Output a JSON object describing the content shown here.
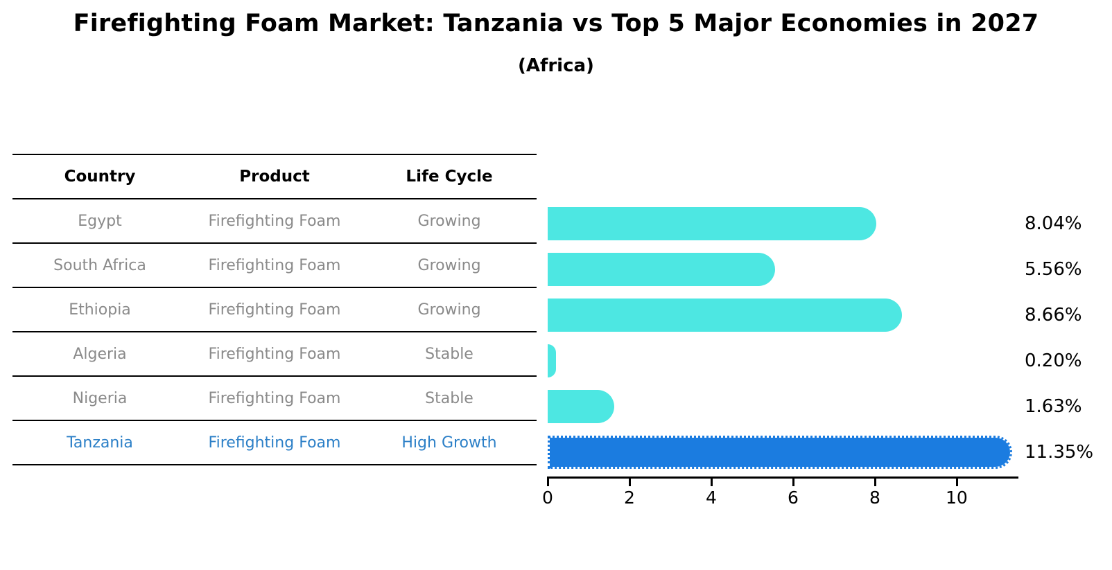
{
  "chart": {
    "title": "Firefighting Foam Market: Tanzania vs Top 5 Major Economies in 2027",
    "subtitle": "(Africa)"
  },
  "table": {
    "headers": [
      "Country",
      "Product",
      "Life Cycle"
    ],
    "rows": [
      {
        "country": "Egypt",
        "product": "Firefighting Foam",
        "life_cycle": "Growing",
        "highlight": false
      },
      {
        "country": "South Africa",
        "product": "Firefighting Foam",
        "life_cycle": "Growing",
        "highlight": false
      },
      {
        "country": "Ethiopia",
        "product": "Firefighting Foam",
        "life_cycle": "Growing",
        "highlight": false
      },
      {
        "country": "Algeria",
        "product": "Firefighting Foam",
        "life_cycle": "Stable",
        "highlight": false
      },
      {
        "country": "Nigeria",
        "product": "Firefighting Foam",
        "life_cycle": "Stable",
        "highlight": false
      },
      {
        "country": "Tanzania",
        "product": "Firefighting Foam",
        "life_cycle": "High Growth",
        "highlight": true
      }
    ]
  },
  "chart_data": {
    "type": "bar",
    "orientation": "horizontal",
    "title": "Firefighting Foam Market: Tanzania vs Top 5 Major Economies in 2027 (Africa)",
    "categories": [
      "Egypt",
      "South Africa",
      "Ethiopia",
      "Algeria",
      "Nigeria",
      "Tanzania"
    ],
    "values": [
      8.04,
      5.56,
      8.66,
      0.2,
      1.63,
      11.35
    ],
    "value_labels": [
      "8.04%",
      "5.56%",
      "8.66%",
      "0.20%",
      "1.63%",
      "11.35%"
    ],
    "highlight_index": 5,
    "xlabel": "",
    "ylabel": "",
    "xlim": [
      0,
      11.46
    ],
    "xticks": [
      0,
      2,
      4,
      6,
      8,
      10
    ],
    "grid": false,
    "legend": "none"
  },
  "colors": {
    "bar_default": "#4DE7E2",
    "bar_highlight": "#1B7CE0",
    "row_text": "#8a8a8a",
    "highlight_text": "#2b7fc7",
    "axis": "#000000"
  }
}
